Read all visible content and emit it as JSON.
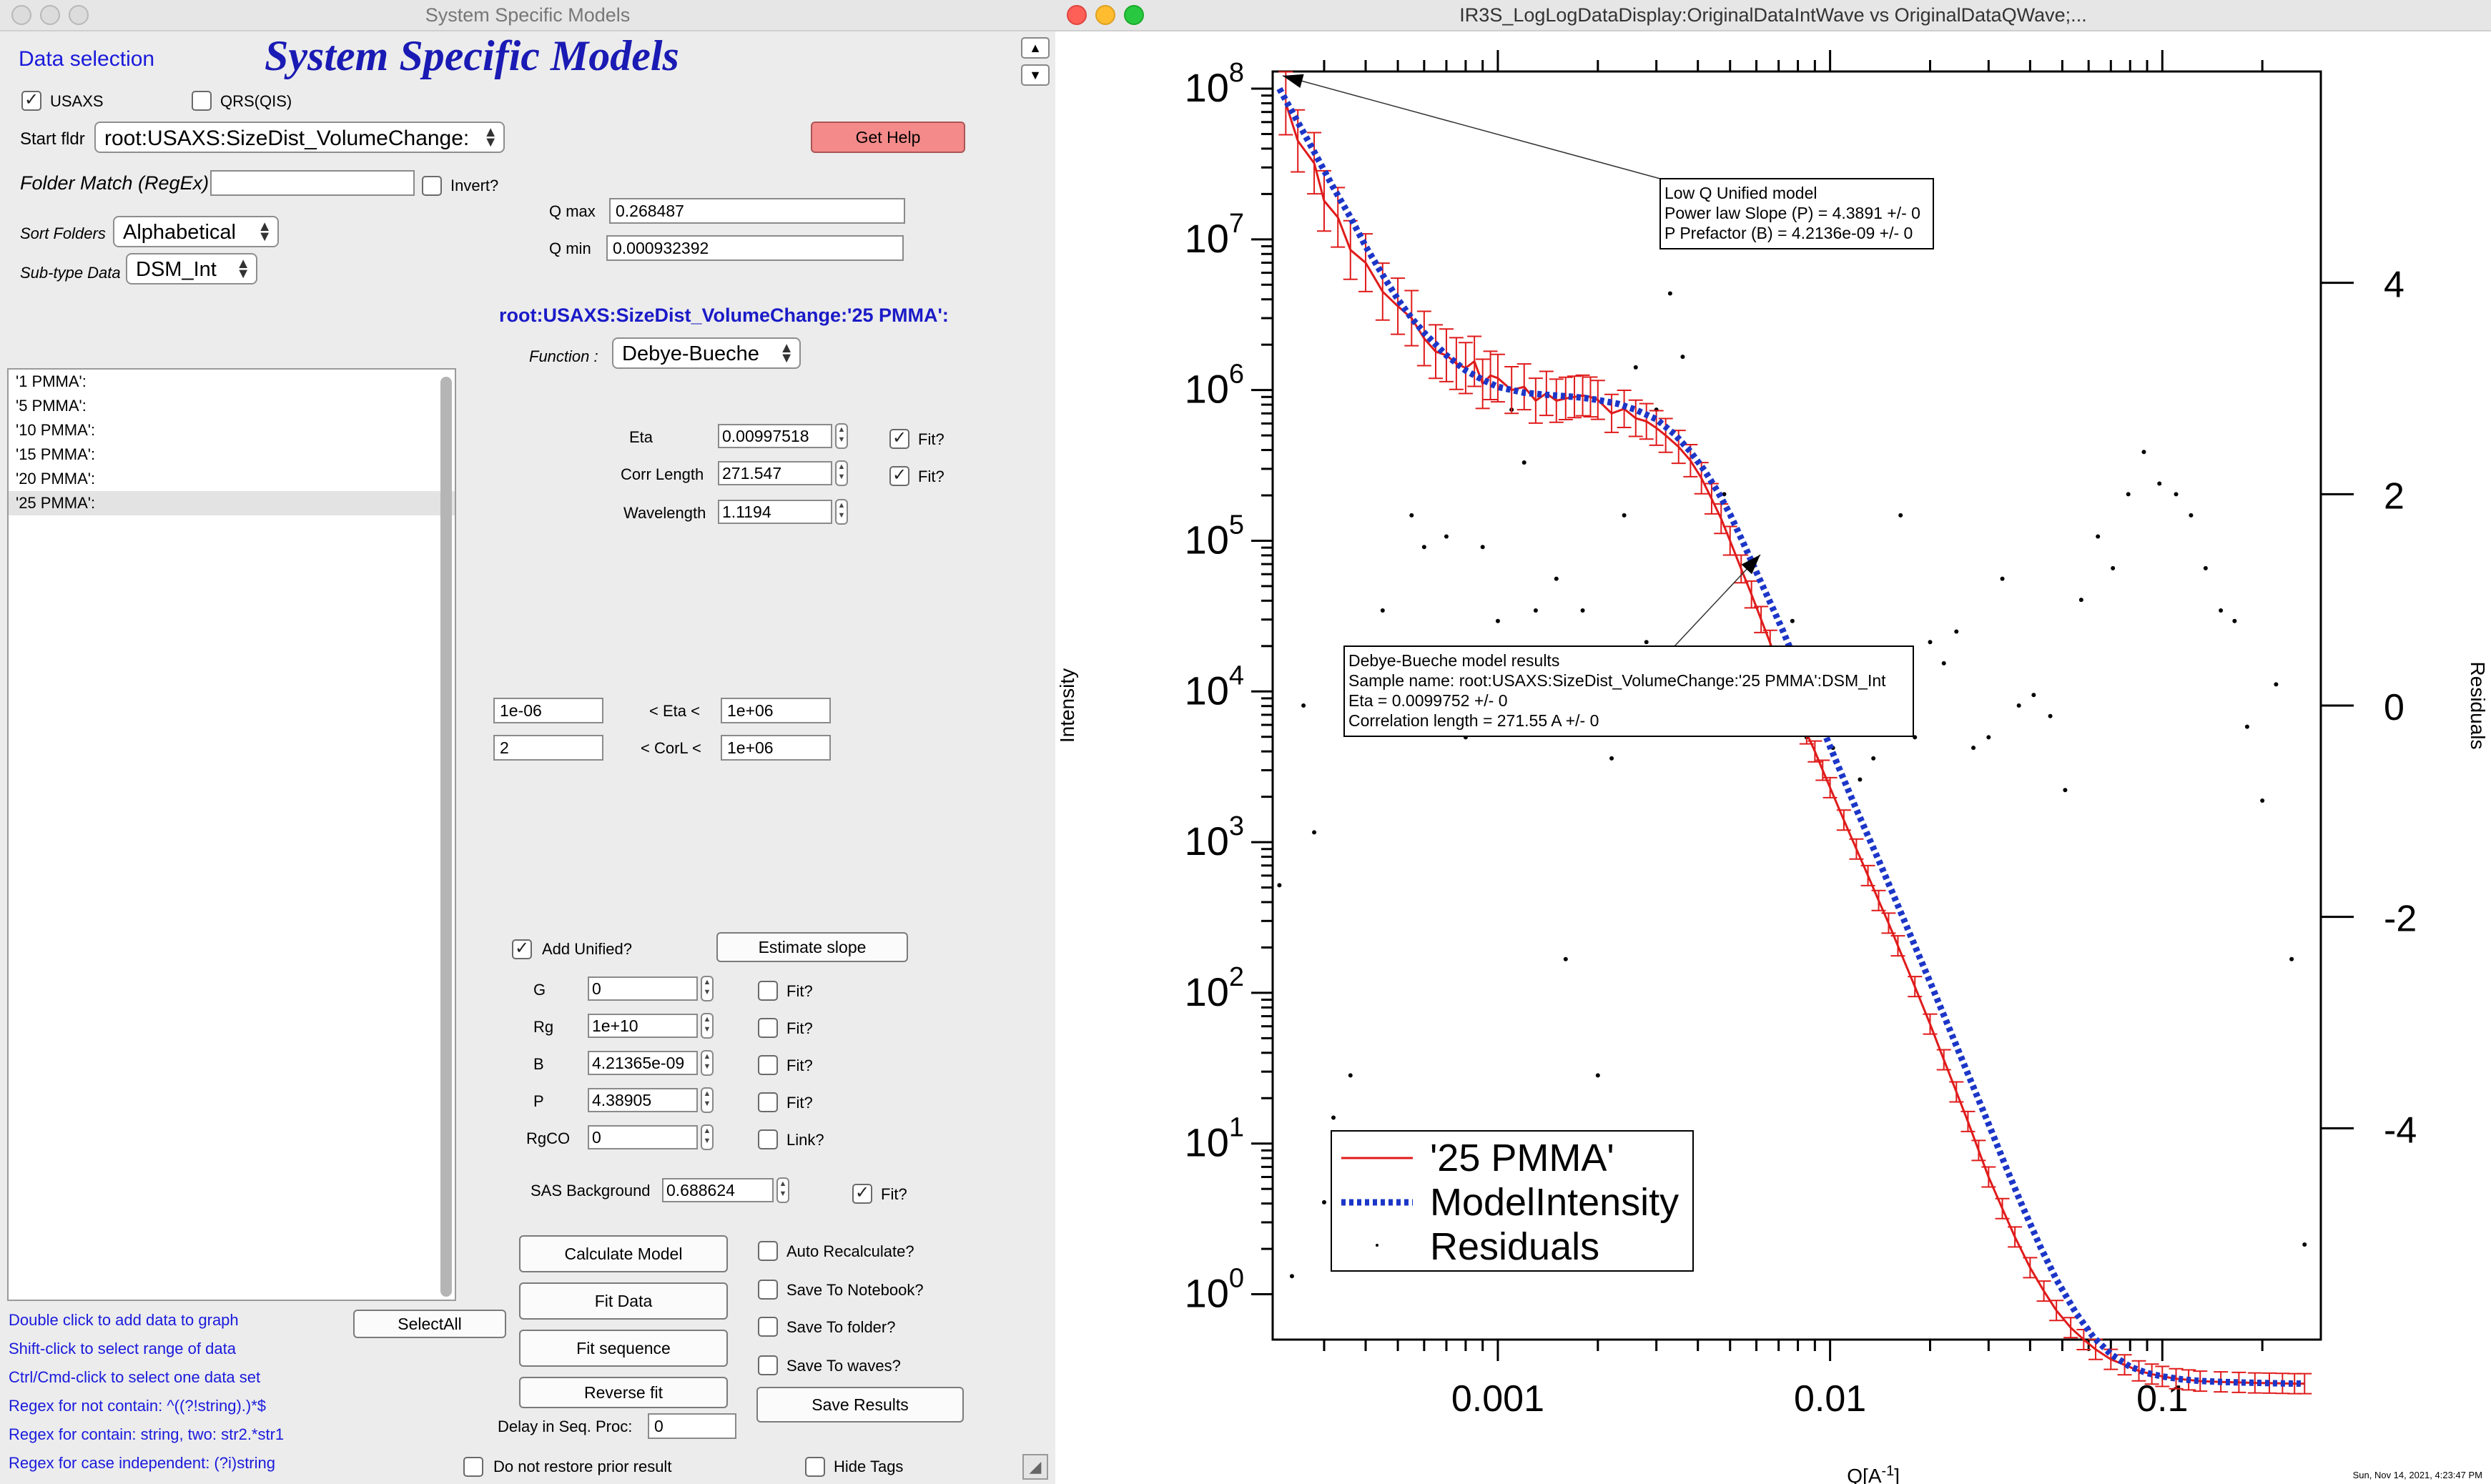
{
  "left_window": {
    "title": "System Specific Models",
    "heading": "System Specific Models",
    "data_selection_label": "Data selection",
    "usaxs_label": "USAXS",
    "usaxs_checked": true,
    "qrs_label": "QRS(QIS)",
    "qrs_checked": false,
    "start_fldr_label": "Start fldr",
    "start_fldr_value": "root:USAXS:SizeDist_VolumeChange:",
    "get_help_label": "Get Help",
    "folder_match_label": "Folder Match (RegEx)",
    "folder_match_value": "",
    "invert_label": "Invert?",
    "invert_checked": false,
    "qmax_label": "Q max",
    "qmax_value": "0.268487",
    "qmin_label": "Q min",
    "qmin_value": "0.000932392",
    "sort_folders_label": "Sort Folders",
    "sort_folders_value": "Alphabetical",
    "subtype_label": "Sub-type Data",
    "subtype_value": "DSM_Int",
    "current_folder": "root:USAXS:SizeDist_VolumeChange:'25 PMMA':",
    "function_label": "Function :",
    "function_value": "Debye-Bueche",
    "folders": [
      "'1 PMMA':",
      "'5 PMMA':",
      "'10 PMMA':",
      "'15 PMMA':",
      "'20 PMMA':",
      "'25 PMMA':"
    ],
    "selected_folder_index": 5,
    "params": {
      "eta_label": "Eta",
      "eta_value": "0.00997518",
      "eta_fit": true,
      "corr_label": "Corr Length",
      "corr_value": "271.547",
      "corr_fit": true,
      "wave_label": "Wavelength",
      "wave_value": "1.1194",
      "fit_label": "Fit?"
    },
    "limits": {
      "eta_low": "1e-06",
      "eta_mid": "< Eta <",
      "eta_high": "1e+06",
      "corl_low": "2",
      "corl_mid": "< CorL <",
      "corl_high": "1e+06"
    },
    "unified": {
      "add_label": "Add Unified?",
      "add_checked": true,
      "estimate_label": "Estimate slope",
      "G_label": "G",
      "G_value": "0",
      "Rg_label": "Rg",
      "Rg_value": "1e+10",
      "B_label": "B",
      "B_value": "4.21365e-09",
      "P_label": "P",
      "P_value": "4.38905",
      "RgCO_label": "RgCO",
      "RgCO_value": "0",
      "fit_label": "Fit?",
      "link_label": "Link?"
    },
    "background": {
      "label": "SAS Background",
      "value": "0.688624",
      "fit_checked": true
    },
    "buttons": {
      "calc": "Calculate Model",
      "fit": "Fit Data",
      "fit_seq": "Fit sequence",
      "reverse": "Reverse fit",
      "select_all": "SelectAll",
      "save_results": "Save Results"
    },
    "options": {
      "auto_recalc": "Auto Recalculate?",
      "save_notebook": "Save To Notebook?",
      "save_folder": "Save To folder?",
      "save_waves": "Save To waves?"
    },
    "delay_label": "Delay in Seq. Proc:",
    "delay_value": "0",
    "no_restore_label": "Do not restore prior result",
    "hide_tags_label": "Hide Tags",
    "help_lines": [
      "Double click to add data to graph",
      "Shift-click to select range of data",
      "Ctrl/Cmd-click to select one data set",
      "Regex for not contain: ^((?!string).)*$",
      "Regex for contain:  string, two: str2.*str1",
      "Regex for case independent:  (?i)string"
    ]
  },
  "graph_window": {
    "title": "IR3S_LogLogDataDisplay:OriginalDataIntWave vs OriginalDataQWave;...",
    "timestamp": "Sun, Nov 14, 2021, 4:23:47 PM",
    "annot_lowq": [
      "Low Q Unified model",
      "Power law Slope (P) = 4.3891 +/- 0",
      "P Prefactor (B) = 4.2136e-09 +/- 0"
    ],
    "annot_db": [
      "Debye-Bueche model results",
      "Sample name: root:USAXS:SizeDist_VolumeChange:'25 PMMA':DSM_Int",
      "Eta                 =           0.0099752 +/- 0",
      "Correlation length =           271.55 A +/- 0"
    ],
    "colors": {
      "data": "#e01b1b",
      "model": "#1c36c8",
      "residuals": "#000000"
    }
  },
  "chart_data": {
    "type": "line",
    "xscale": "log",
    "yscale": "log",
    "xlabel": "Q[A^-1]",
    "ylabel": "Intensity",
    "y2label": "Residuals",
    "xlim": [
      0.00021,
      0.3
    ],
    "ylim": [
      0.5,
      130000000.0
    ],
    "y2lim": [
      -6,
      6
    ],
    "x_ticks": [
      "0.001",
      "0.01",
      "0.1"
    ],
    "y_ticks": [
      "10^0",
      "10^1",
      "10^2",
      "10^3",
      "10^4",
      "10^5",
      "10^6",
      "10^7",
      "10^8"
    ],
    "y2_ticks": [
      "-4",
      "-2",
      "0",
      "2",
      "4"
    ],
    "legend": {
      "placement": "bottom-left",
      "entries": [
        "'25 PMMA'",
        "ModelIntensity",
        "Residuals"
      ]
    },
    "series": [
      {
        "name": "'25 PMMA'",
        "x": [
          0.00023,
          0.00025,
          0.00028,
          0.0003,
          0.00033,
          0.00036,
          0.0004,
          0.00045,
          0.0005,
          0.00055,
          0.0006,
          0.00065,
          0.0007,
          0.00075,
          0.0008,
          0.00085,
          0.0009,
          0.00095,
          0.001,
          0.0011,
          0.0012,
          0.0013,
          0.0014,
          0.0015,
          0.0016,
          0.0017,
          0.0018,
          0.0019,
          0.002,
          0.0022,
          0.0024,
          0.0026,
          0.0028,
          0.003,
          0.0032,
          0.0035,
          0.0038,
          0.0041,
          0.0044,
          0.0047,
          0.005,
          0.0054,
          0.0058,
          0.0062,
          0.0066,
          0.007,
          0.0075,
          0.008,
          0.0085,
          0.009,
          0.0095,
          0.01,
          0.011,
          0.012,
          0.013,
          0.014,
          0.015,
          0.016,
          0.018,
          0.02,
          0.022,
          0.024,
          0.026,
          0.028,
          0.03,
          0.033,
          0.036,
          0.04,
          0.044,
          0.048,
          0.053,
          0.058,
          0.063,
          0.07,
          0.077,
          0.085,
          0.093,
          0.1,
          0.11,
          0.12,
          0.13,
          0.15,
          0.17,
          0.19,
          0.21,
          0.23,
          0.25,
          0.268
        ],
        "y": [
          80000000.0,
          45000000.0,
          32000000.0,
          18000000.0,
          14000000.0,
          8500000.0,
          7000000.0,
          4500000.0,
          3600000.0,
          3000000.0,
          2200000.0,
          1800000.0,
          1700000.0,
          1500000.0,
          1400000.0,
          1550000.0,
          1100000.0,
          1250000.0,
          1200000.0,
          1000000.0,
          1050000.0,
          850000.0,
          950000.0,
          850000.0,
          880000.0,
          900000.0,
          920000.0,
          900000.0,
          860000.0,
          700000.0,
          750000.0,
          650000.0,
          620000.0,
          560000.0,
          500000.0,
          420000.0,
          340000.0,
          260000.0,
          190000.0,
          140000.0,
          100000.0,
          65000.0,
          44000.0,
          30000.0,
          21000.0,
          15000.0,
          10000.0,
          7300.0,
          5300.0,
          4000.0,
          3000.0,
          2300.0,
          1400.0,
          900,
          600,
          410,
          290,
          205,
          110,
          62,
          36,
          22,
          14,
          9,
          6,
          3.7,
          2.4,
          1.5,
          1.05,
          0.78,
          0.6,
          0.5,
          0.43,
          0.37,
          0.34,
          0.31,
          0.295,
          0.285,
          0.275,
          0.27,
          0.265,
          0.262,
          0.26,
          0.258,
          0.257,
          0.256,
          0.255,
          0.255
        ]
      },
      {
        "name": "ModelIntensity",
        "x": [
          0.00022,
          0.00025,
          0.00028,
          0.00032,
          0.00036,
          0.0004,
          0.00045,
          0.0005,
          0.00055,
          0.0006,
          0.0007,
          0.0008,
          0.0009,
          0.001,
          0.0012,
          0.0014,
          0.0016,
          0.0018,
          0.002,
          0.0023,
          0.0026,
          0.003,
          0.0034,
          0.0038,
          0.0042,
          0.0046,
          0.005,
          0.0055,
          0.006,
          0.0066,
          0.0072,
          0.008,
          0.009,
          0.01,
          0.011,
          0.012,
          0.014,
          0.016,
          0.018,
          0.02,
          0.023,
          0.026,
          0.03,
          0.034,
          0.038,
          0.043,
          0.048,
          0.055,
          0.062,
          0.07,
          0.08,
          0.09,
          0.1,
          0.115,
          0.13,
          0.15,
          0.17,
          0.2,
          0.23,
          0.268
        ],
        "y": [
          100000000.0,
          60000000.0,
          38000000.0,
          22000000.0,
          14000000.0,
          9000000.0,
          5800000.0,
          4000000.0,
          3000000.0,
          2400000.0,
          1700000.0,
          1350000.0,
          1170000.0,
          1050000.0,
          960000.0,
          930000.0,
          910000.0,
          890000.0,
          860000.0,
          810000.0,
          740000.0,
          640000.0,
          510000.0,
          390000.0,
          290000.0,
          210000.0,
          150000.0,
          95000.0,
          62000.0,
          39000.0,
          25500.0,
          14500.0,
          7600.0,
          4300.0,
          2600.0,
          1650.0,
          760,
          380,
          205,
          118,
          56,
          29,
          13.5,
          6.8,
          3.8,
          2.05,
          1.25,
          0.75,
          0.52,
          0.4,
          0.33,
          0.3,
          0.285,
          0.272,
          0.266,
          0.262,
          0.26,
          0.258,
          0.256,
          0.255
        ]
      },
      {
        "name": "Residuals",
        "axis": "right",
        "x": [
          0.00022,
          0.00024,
          0.00026,
          0.00028,
          0.0003,
          0.00032,
          0.00034,
          0.00036,
          0.0004,
          0.00045,
          0.0005,
          0.00055,
          0.0006,
          0.00065,
          0.0007,
          0.00075,
          0.0008,
          0.00085,
          0.0009,
          0.001,
          0.0011,
          0.0012,
          0.0013,
          0.0014,
          0.0015,
          0.0016,
          0.0018,
          0.002,
          0.0022,
          0.0024,
          0.0026,
          0.0028,
          0.003,
          0.0033,
          0.0036,
          0.004,
          0.0044,
          0.0048,
          0.0053,
          0.0058,
          0.0064,
          0.007,
          0.0077,
          0.0085,
          0.0093,
          0.0102,
          0.0112,
          0.0123,
          0.0135,
          0.0148,
          0.0163,
          0.018,
          0.02,
          0.022,
          0.024,
          0.027,
          0.03,
          0.033,
          0.037,
          0.041,
          0.046,
          0.051,
          0.057,
          0.064,
          0.071,
          0.079,
          0.088,
          0.098,
          0.11,
          0.122,
          0.135,
          0.15,
          0.165,
          0.18,
          0.2,
          0.22,
          0.245,
          0.268
        ],
        "y": [
          -1.7,
          -5.4,
          0,
          -1.2,
          -4.7,
          -3.9,
          -4.4,
          -3.5,
          0.2,
          0.9,
          0.3,
          1.8,
          1.5,
          0.5,
          1.6,
          0.4,
          -0.3,
          0.2,
          1.5,
          0.8,
          2.8,
          2.3,
          0.9,
          0.4,
          1.2,
          -2.4,
          0.9,
          -3.5,
          -0.5,
          1.8,
          3.2,
          0.6,
          2.8,
          3.9,
          3.3,
          2.3,
          0.2,
          2.0,
          0.5,
          0.1,
          0.3,
          -0.2,
          0.8,
          -0.3,
          0.1,
          -0.4,
          -0.2,
          -0.7,
          -0.5,
          0.4,
          1.8,
          -0.3,
          0.6,
          0.4,
          0.7,
          -0.4,
          -0.3,
          1.2,
          0.0,
          0.1,
          -0.1,
          -0.8,
          1.0,
          1.6,
          1.3,
          2.0,
          2.4,
          2.1,
          2.0,
          1.8,
          1.3,
          0.9,
          0.8,
          -0.2,
          -0.9,
          0.2,
          -2.4,
          -5.1
        ]
      }
    ]
  }
}
